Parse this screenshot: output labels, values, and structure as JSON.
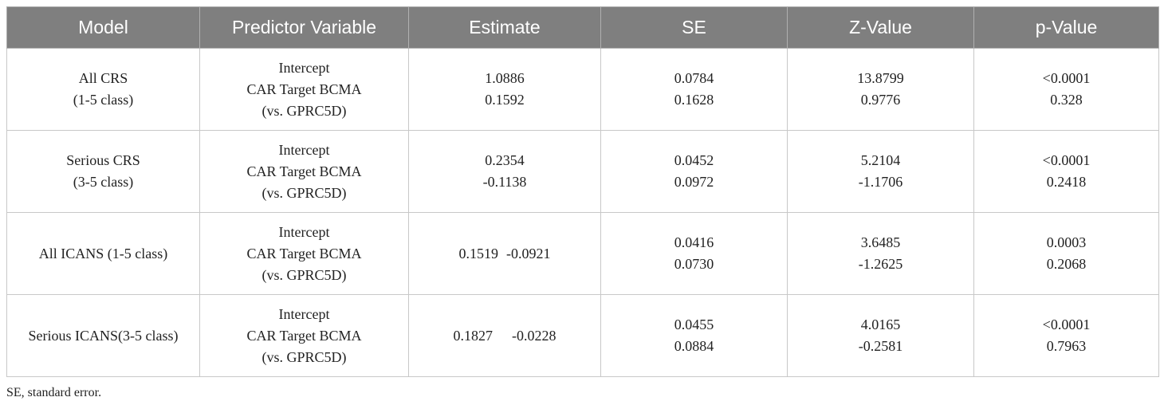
{
  "table": {
    "headers": [
      "Model",
      "Predictor Variable",
      "Estimate",
      "SE",
      "Z-Value",
      "p-Value"
    ],
    "rows": [
      {
        "model": [
          "All CRS",
          "(1-5 class)"
        ],
        "predictor": [
          "Intercept",
          "CAR Target BCMA",
          "(vs. GPRC5D)"
        ],
        "estimate": [
          "1.0886",
          "0.1592"
        ],
        "se": [
          "0.0784",
          "0.1628"
        ],
        "z": [
          "13.8799",
          "0.9776"
        ],
        "p": [
          "<0.0001",
          "0.328"
        ]
      },
      {
        "model": [
          "Serious CRS",
          "(3-5 class)"
        ],
        "predictor": [
          "Intercept",
          "CAR Target BCMA",
          "(vs. GPRC5D)"
        ],
        "estimate": [
          "0.2354",
          "-0.1138"
        ],
        "se": [
          "0.0452",
          "0.0972"
        ],
        "z": [
          "5.2104",
          "-1.1706"
        ],
        "p": [
          "<0.0001",
          "0.2418"
        ]
      },
      {
        "model": [
          "All ICANS (1-5 class)"
        ],
        "predictor": [
          "Intercept",
          "CAR Target BCMA",
          "(vs. GPRC5D)"
        ],
        "estimate": [
          "0.1519",
          "-0.0921"
        ],
        "se": [
          "0.0416",
          "0.0730"
        ],
        "z": [
          "3.6485",
          "-1.2625"
        ],
        "p": [
          "0.0003",
          "0.2068"
        ]
      },
      {
        "model": [
          "Serious ICANS(3-5 class)"
        ],
        "predictor": [
          "Intercept",
          "CAR Target BCMA",
          "(vs. GPRC5D)"
        ],
        "estimate": [
          "0.1827",
          "-0.0228"
        ],
        "se": [
          "0.0455",
          "0.0884"
        ],
        "z": [
          "4.0165",
          "-0.2581"
        ],
        "p": [
          "<0.0001",
          "0.7963"
        ]
      }
    ]
  },
  "footnote": "SE, standard error."
}
